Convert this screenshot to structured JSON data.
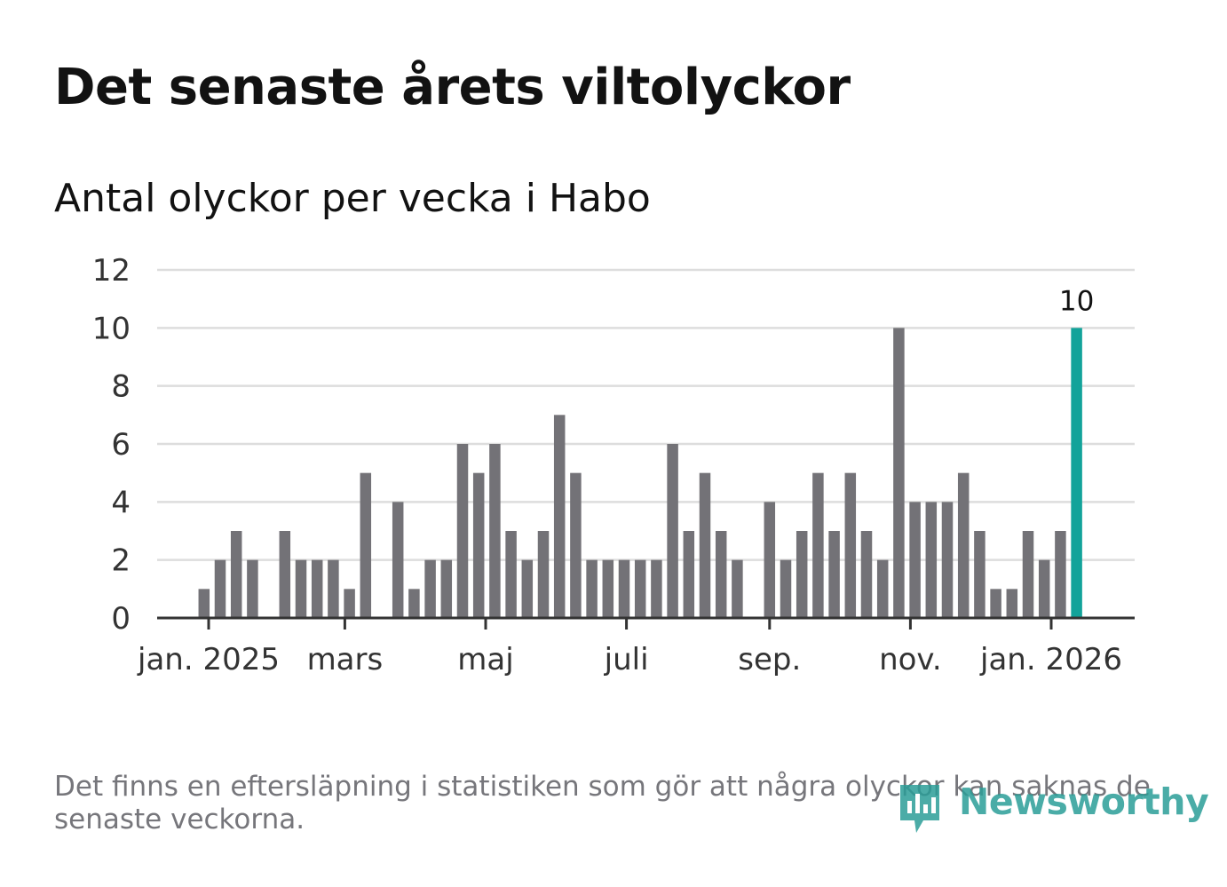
{
  "title": "Det senaste årets viltolyckor",
  "subtitle": "Antal olyckor per vecka i Habo",
  "note": "Det finns en eftersläpning i statistiken som gör att några olyckor kan saknas de senaste veckorna.",
  "brand": "Newsworthy",
  "colors": {
    "bar": "#737277",
    "highlight": "#12a39a",
    "grid": "#dddddd",
    "axis": "#333333",
    "text": "#121212",
    "muted": "#76767b",
    "brand": "#2b9e98"
  },
  "chart_data": {
    "type": "bar",
    "title": "Det senaste årets viltolyckor",
    "subtitle": "Antal olyckor per vecka i Habo",
    "x_start": "2024-12-23",
    "x_step_days": 7,
    "values": [
      0,
      1,
      2,
      3,
      2,
      0,
      3,
      2,
      2,
      2,
      1,
      5,
      0,
      4,
      1,
      2,
      2,
      6,
      5,
      6,
      3,
      2,
      3,
      7,
      5,
      2,
      2,
      2,
      2,
      2,
      6,
      3,
      5,
      3,
      2,
      0,
      4,
      2,
      3,
      5,
      3,
      5,
      3,
      2,
      10,
      4,
      4,
      4,
      5,
      3,
      1,
      1,
      3,
      2,
      3,
      10
    ],
    "highlight_index": 55,
    "highlight_label": "10",
    "ylim": [
      0,
      12
    ],
    "yticks": [
      0,
      2,
      4,
      6,
      8,
      10,
      12
    ],
    "xticks": [
      {
        "date": "2025-01-01",
        "label": "jan. 2025"
      },
      {
        "date": "2025-03-01",
        "label": "mars"
      },
      {
        "date": "2025-05-01",
        "label": "maj"
      },
      {
        "date": "2025-07-01",
        "label": "juli"
      },
      {
        "date": "2025-09-01",
        "label": "sep."
      },
      {
        "date": "2025-11-01",
        "label": "nov."
      },
      {
        "date": "2026-01-01",
        "label": "jan. 2026"
      }
    ],
    "grid": true,
    "legend": "none"
  }
}
